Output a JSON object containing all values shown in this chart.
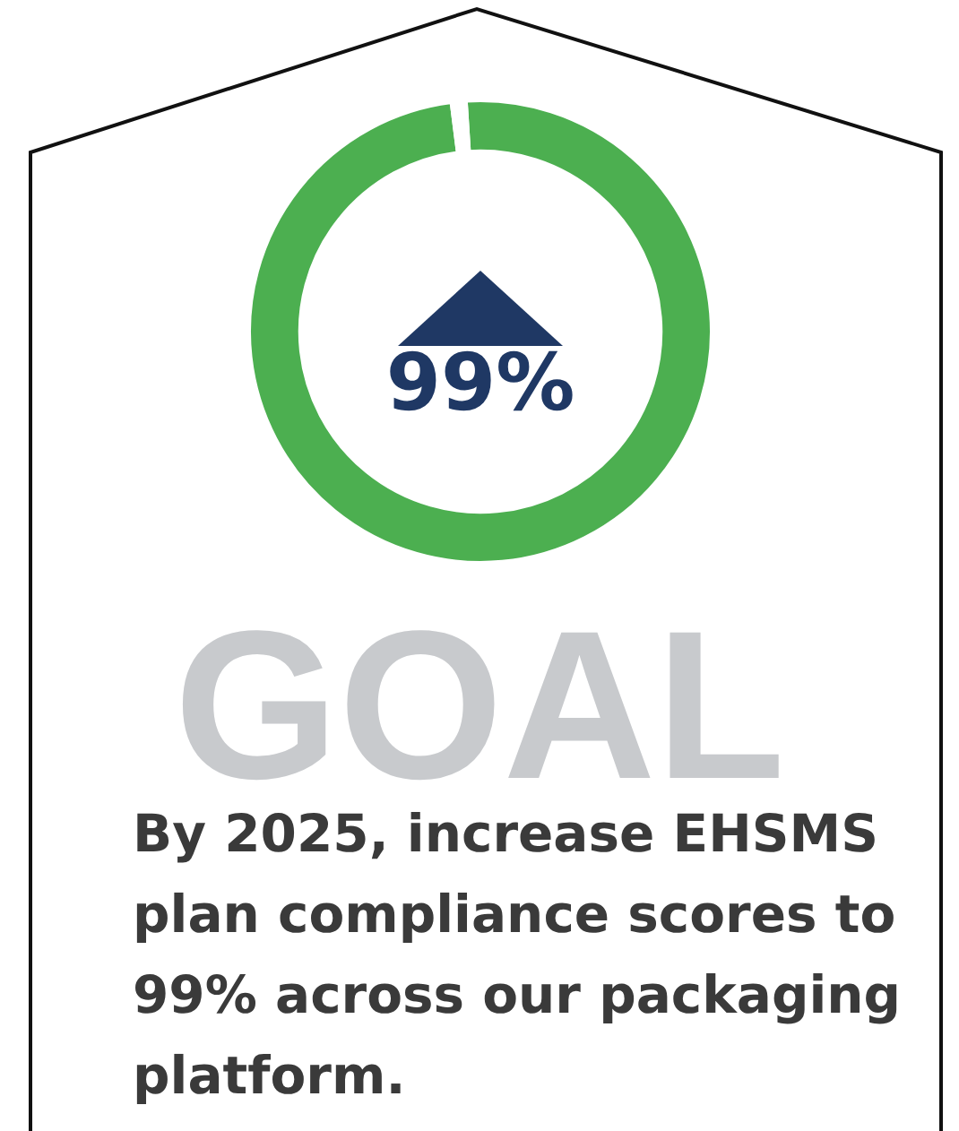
{
  "chart_data": {
    "type": "donut",
    "title": "GOAL",
    "categories": [
      null,
      null
    ],
    "values": [
      99,
      1
    ],
    "colors": [
      "#4caf50",
      "#ffffff"
    ],
    "value_labels": [
      "99%",
      null
    ],
    "legend": false,
    "annotations": [
      "By 2025, increase EHSMS plan compliance scores to 99% across our packaging platform."
    ]
  }
}
